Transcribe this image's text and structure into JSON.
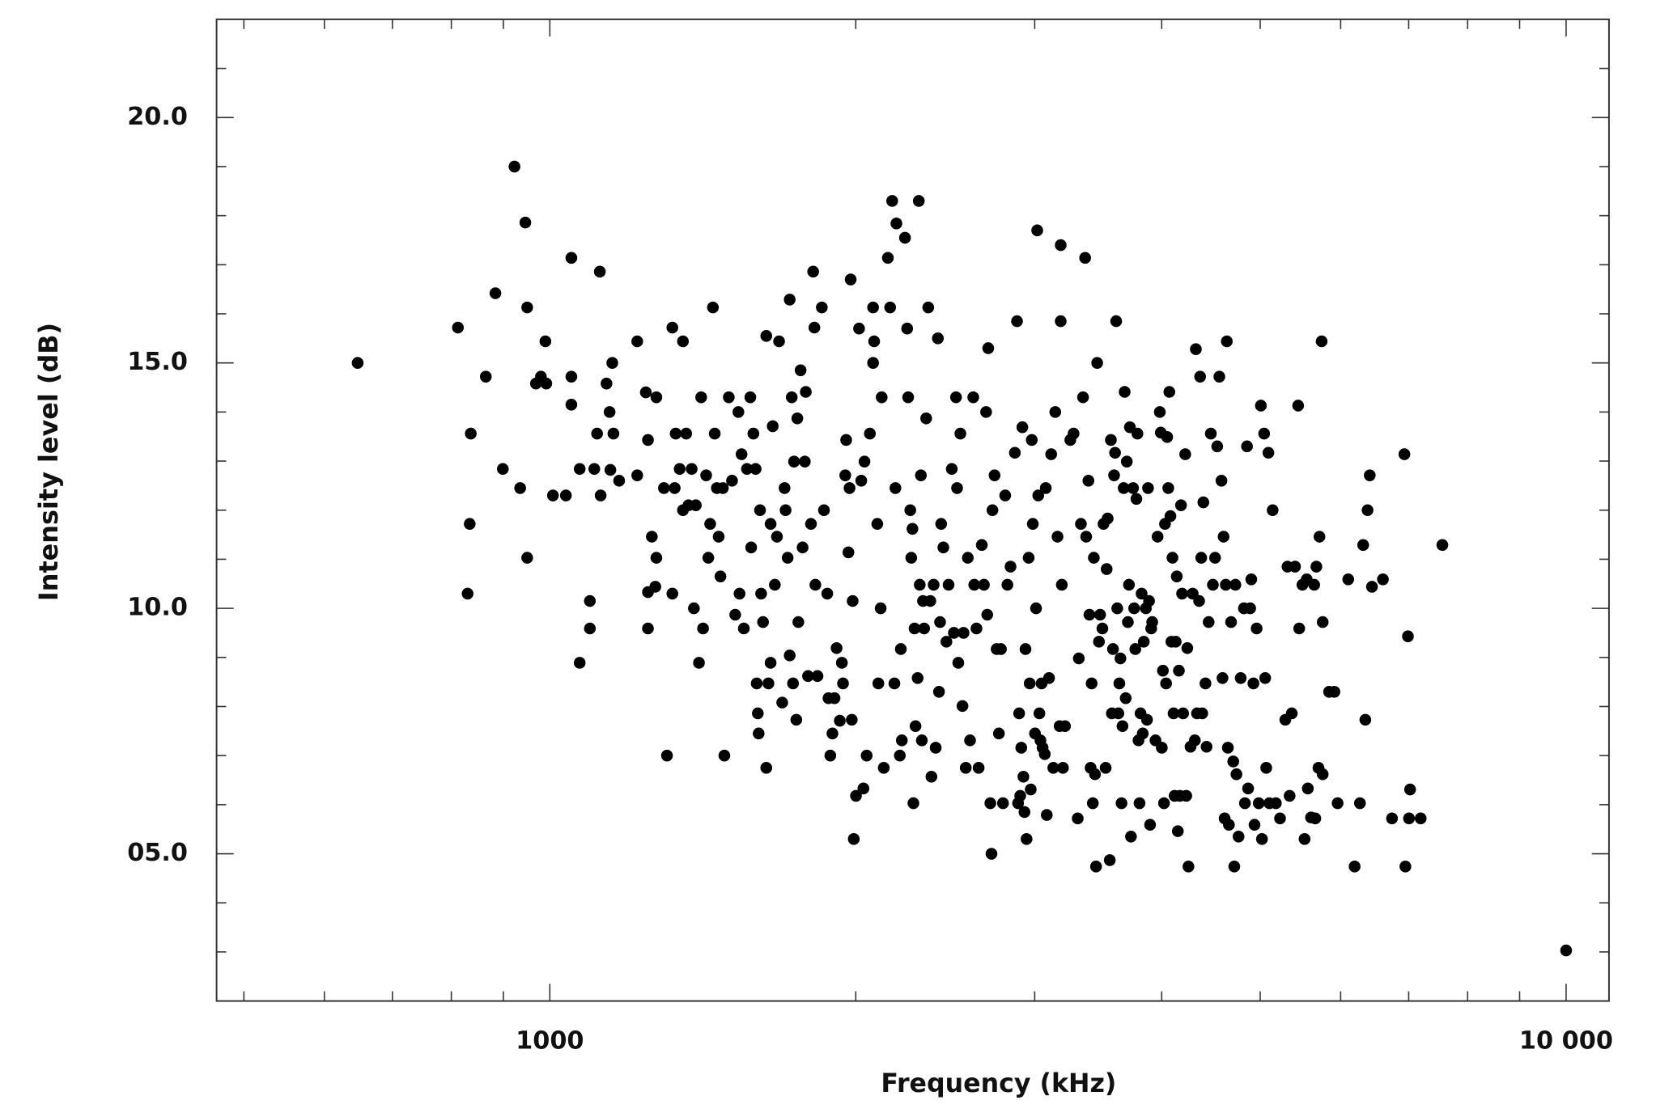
{
  "chart_data": {
    "type": "scatter",
    "xlabel": "Frequency (kHz)",
    "ylabel": "Intensity level (dB)",
    "color": "#000000",
    "xscale": "log",
    "xlim": [
      470,
      11020
    ],
    "ylim": [
      2,
      22
    ],
    "xticks": [
      1000,
      {
        "value": 10000,
        "label": "10 000"
      }
    ],
    "xminorticks": [
      500,
      600,
      700,
      800,
      900,
      2000,
      3000,
      4000,
      5000,
      6000,
      7000,
      8000,
      9000
    ],
    "yticks": [
      {
        "value": 5,
        "label": "05.0"
      },
      {
        "value": 10,
        "label": "10.0"
      },
      {
        "value": 15,
        "label": "15.0"
      },
      {
        "value": 20,
        "label": "20.0"
      }
    ],
    "yminorticks": [
      3,
      4,
      6,
      7,
      8,
      9,
      11,
      12,
      13,
      14,
      16,
      17,
      18,
      19,
      21
    ],
    "x": [
      647,
      812,
      834,
      830,
      836,
      865,
      884,
      899,
      923,
      935,
      946,
      950,
      950,
      969,
      980,
      990,
      992,
      1007,
      1037,
      1050,
      1050,
      1050,
      1070,
      1070,
      1095,
      1095,
      1106,
      1113,
      1120,
      1122,
      1137,
      1145,
      1147,
      1155,
      1152,
      1170,
      1219,
      1219,
      1243,
      1249,
      1249,
      1249,
      1260,
      1270,
      1273,
      1273,
      1295,
      1304,
      1320,
      1320,
      1327,
      1330,
      1342,
      1352,
      1352,
      1362,
      1369,
      1379,
      1386,
      1392,
      1402,
      1409,
      1415,
      1425,
      1432,
      1438,
      1447,
      1453,
      1460,
      1466,
      1472,
      1480,
      1485,
      1500,
      1511,
      1522,
      1533,
      1537,
      1544,
      1552,
      1563,
      1575,
      1578,
      1586,
      1594,
      1598,
      1602,
      1605,
      1610,
      1614,
      1621,
      1633,
      1633,
      1641,
      1649,
      1649,
      1657,
      1665,
      1673,
      1681,
      1693,
      1702,
      1706,
      1714,
      1722,
      1722,
      1730,
      1735,
      1739,
      1748,
      1752,
      1756,
      1765,
      1773,
      1782,
      1786,
      1795,
      1807,
      1816,
      1821,
      1825,
      1834,
      1852,
      1861,
      1875,
      1880,
      1888,
      1897,
      1906,
      1915,
      1929,
      1938,
      1943,
      1953,
      1957,
      1967,
      1972,
      1977,
      1982,
      1986,
      1991,
      2001,
      2015,
      2025,
      2035,
      2040,
      2050,
      2065,
      2080,
      2080,
      2085,
      2100,
      2105,
      2116,
      2121,
      2131,
      2151,
      2162,
      2172,
      2183,
      2188,
      2193,
      2210,
      2215,
      2220,
      2236,
      2247,
      2252,
      2263,
      2268,
      2274,
      2279,
      2285,
      2290,
      2301,
      2307,
      2312,
      2318,
      2323,
      2329,
      2335,
      2346,
      2357,
      2368,
      2374,
      2386,
      2397,
      2409,
      2415,
      2421,
      2427,
      2439,
      2456,
      2468,
      2486,
      2498,
      2510,
      2516,
      2523,
      2535,
      2547,
      2553,
      2566,
      2578,
      2591,
      2610,
      2616,
      2629,
      2642,
      2661,
      2674,
      2687,
      2694,
      2700,
      2713,
      2720,
      2726,
      2739,
      2752,
      2766,
      2779,
      2792,
      2806,
      2820,
      2840,
      2868,
      2882,
      2889,
      2896,
      2903,
      2910,
      2917,
      2924,
      2931,
      2938,
      2945,
      2959,
      2966,
      2973,
      2980,
      2987,
      3002,
      3009,
      3017,
      3024,
      3032,
      3039,
      3047,
      3054,
      3069,
      3076,
      3083,
      3099,
      3114,
      3129,
      3143,
      3159,
      3174,
      3182,
      3182,
      3190,
      3198,
      3213,
      3252,
      3276,
      3307,
      3315,
      3331,
      3347,
      3363,
      3371,
      3388,
      3396,
      3405,
      3413,
      3422,
      3430,
      3439,
      3447,
      3456,
      3470,
      3479,
      3497,
      3506,
      3523,
      3531,
      3539,
      3556,
      3565,
      3573,
      3582,
      3591,
      3599,
      3608,
      3617,
      3626,
      3634,
      3643,
      3652,
      3660,
      3670,
      3678,
      3687,
      3696,
      3705,
      3714,
      3722,
      3731,
      3749,
      3758,
      3768,
      3777,
      3786,
      3795,
      3804,
      3813,
      3822,
      3832,
      3841,
      3859,
      3869,
      3878,
      3887,
      3896,
      3906,
      3915,
      3944,
      3963,
      3983,
      3992,
      4001,
      4011,
      4021,
      4030,
      4040,
      4050,
      4060,
      4070,
      4080,
      4089,
      4099,
      4109,
      4119,
      4129,
      4139,
      4149,
      4159,
      4169,
      4179,
      4189,
      4199,
      4219,
      4229,
      4239,
      4250,
      4270,
      4291,
      4312,
      4322,
      4333,
      4354,
      4364,
      4375,
      4385,
      4396,
      4417,
      4428,
      4449,
      4471,
      4492,
      4514,
      4536,
      4558,
      4580,
      4591,
      4602,
      4613,
      4625,
      4636,
      4647,
      4658,
      4681,
      4704,
      4715,
      4727,
      4738,
      4761,
      4784,
      4819,
      4830,
      4853,
      4865,
      4888,
      4900,
      4924,
      4936,
      4960,
      4984,
      5008,
      5020,
      5045,
      5057,
      5069,
      5094,
      5106,
      5143,
      5181,
      5230,
      5293,
      5319,
      5345,
      5371,
      5411,
      5449,
      5462,
      5502,
      5529,
      5556,
      5570,
      5610,
      5651,
      5665,
      5679,
      5706,
      5719,
      5747,
      5761,
      5761,
      5845,
      5916,
      5959,
      6104,
      6193,
      6268,
      6314,
      6345,
      6377,
      6409,
      6441,
      6603,
      6740,
      6932,
      6948,
      6988,
      7005,
      7022,
      7193,
      7555,
      10000
    ],
    "values": [
      15.0,
      15.72,
      11.72,
      10.3,
      13.56,
      14.72,
      16.42,
      12.84,
      19.0,
      12.45,
      17.86,
      16.13,
      11.03,
      14.58,
      14.72,
      15.44,
      14.58,
      12.3,
      12.3,
      17.14,
      14.72,
      14.15,
      12.84,
      8.89,
      10.15,
      9.59,
      12.84,
      13.56,
      16.86,
      12.3,
      14.58,
      14.0,
      12.82,
      13.56,
      15.0,
      12.6,
      15.44,
      12.71,
      14.4,
      13.43,
      10.33,
      9.59,
      11.46,
      10.44,
      14.3,
      11.03,
      12.45,
      7.0,
      15.72,
      10.3,
      12.45,
      13.56,
      12.84,
      15.44,
      12.0,
      13.56,
      12.1,
      12.84,
      10.0,
      12.1,
      8.89,
      14.3,
      9.59,
      12.71,
      11.03,
      11.72,
      16.13,
      13.56,
      12.45,
      11.46,
      10.65,
      12.45,
      7.0,
      14.3,
      12.6,
      9.87,
      14.0,
      10.3,
      13.14,
      9.59,
      12.84,
      14.3,
      11.24,
      13.56,
      12.84,
      8.47,
      7.86,
      7.45,
      12.0,
      10.3,
      9.72,
      6.75,
      15.55,
      8.47,
      8.89,
      11.72,
      13.71,
      10.48,
      11.46,
      15.44,
      8.08,
      12.45,
      12.0,
      11.03,
      16.29,
      9.04,
      14.3,
      8.47,
      12.99,
      7.73,
      13.87,
      9.72,
      14.85,
      11.24,
      12.99,
      14.41,
      8.62,
      11.72,
      16.86,
      15.72,
      10.48,
      8.62,
      16.13,
      12.0,
      10.3,
      8.17,
      7.0,
      7.45,
      8.17,
      9.19,
      7.71,
      8.89,
      8.47,
      12.71,
      13.43,
      11.14,
      12.45,
      16.7,
      7.73,
      10.15,
      5.3,
      6.18,
      15.7,
      12.6,
      6.33,
      12.99,
      7.0,
      13.56,
      16.13,
      15.0,
      15.44,
      11.72,
      8.47,
      10.0,
      14.3,
      6.75,
      17.14,
      16.13,
      18.3,
      8.47,
      12.45,
      17.84,
      7.0,
      9.17,
      7.31,
      17.55,
      15.7,
      14.3,
      12.0,
      11.03,
      11.62,
      6.03,
      9.59,
      7.6,
      8.58,
      18.3,
      10.48,
      12.71,
      7.31,
      10.15,
      9.59,
      13.87,
      16.13,
      10.15,
      6.57,
      10.48,
      7.16,
      15.5,
      8.3,
      9.72,
      11.72,
      11.24,
      9.32,
      10.48,
      12.84,
      9.5,
      14.3,
      12.45,
      8.89,
      13.56,
      8.01,
      9.5,
      6.75,
      11.03,
      7.31,
      14.3,
      10.48,
      9.59,
      6.75,
      11.29,
      10.48,
      14.0,
      9.87,
      15.3,
      6.03,
      5.0,
      12.0,
      12.71,
      9.17,
      7.45,
      9.17,
      6.03,
      12.3,
      10.48,
      10.85,
      13.17,
      15.85,
      6.03,
      7.86,
      6.18,
      7.16,
      13.69,
      6.57,
      5.85,
      9.17,
      5.3,
      11.03,
      8.47,
      6.31,
      13.43,
      11.72,
      7.45,
      10.0,
      17.7,
      12.3,
      7.86,
      7.31,
      8.47,
      7.16,
      7.03,
      12.45,
      5.79,
      8.58,
      13.14,
      6.75,
      14.0,
      11.46,
      7.6,
      17.4,
      15.85,
      10.48,
      6.75,
      7.6,
      13.43,
      13.56,
      5.72,
      8.98,
      11.72,
      14.3,
      17.14,
      11.46,
      12.6,
      9.87,
      6.75,
      8.47,
      6.03,
      11.03,
      6.62,
      4.74,
      15.0,
      9.32,
      9.87,
      9.59,
      11.72,
      6.75,
      10.8,
      11.83,
      4.87,
      13.43,
      7.86,
      9.17,
      12.71,
      13.17,
      15.85,
      10.0,
      7.86,
      8.47,
      8.98,
      6.03,
      7.6,
      12.45,
      14.41,
      8.17,
      12.99,
      9.72,
      10.48,
      13.69,
      5.35,
      12.45,
      10.0,
      9.17,
      12.23,
      13.56,
      7.31,
      6.03,
      7.86,
      10.3,
      7.45,
      9.32,
      10.0,
      7.73,
      12.45,
      10.15,
      5.59,
      9.59,
      9.72,
      7.31,
      11.46,
      14.0,
      13.58,
      7.16,
      8.73,
      6.03,
      11.72,
      8.47,
      13.49,
      12.45,
      14.41,
      11.88,
      9.32,
      11.03,
      7.86,
      6.18,
      9.32,
      10.65,
      5.46,
      8.73,
      6.18,
      12.1,
      10.3,
      7.86,
      13.14,
      6.18,
      9.19,
      4.74,
      7.18,
      10.3,
      7.31,
      15.28,
      7.86,
      10.15,
      14.72,
      11.03,
      7.86,
      12.16,
      8.47,
      7.18,
      9.72,
      13.56,
      10.48,
      11.03,
      13.3,
      14.72,
      12.6,
      8.58,
      11.46,
      5.72,
      10.48,
      15.44,
      7.16,
      5.59,
      9.72,
      6.88,
      4.74,
      10.48,
      6.62,
      5.35,
      8.58,
      10.0,
      6.03,
      13.3,
      6.33,
      10.0,
      10.59,
      8.47,
      5.59,
      9.59,
      6.03,
      14.13,
      5.3,
      13.56,
      8.58,
      6.75,
      13.17,
      6.03,
      12.0,
      6.03,
      5.72,
      7.73,
      10.85,
      6.18,
      7.86,
      10.85,
      14.13,
      9.59,
      10.48,
      5.3,
      10.59,
      6.33,
      5.74,
      10.48,
      5.72,
      10.85,
      6.75,
      11.46,
      15.44,
      9.72,
      6.62,
      8.3,
      8.3,
      6.03,
      10.59,
      4.74,
      6.03,
      11.29,
      7.73,
      12.0,
      12.71,
      10.44,
      10.59,
      5.72,
      13.14,
      4.74,
      9.43,
      5.72,
      6.31,
      5.72,
      11.29,
      3.03
    ]
  }
}
